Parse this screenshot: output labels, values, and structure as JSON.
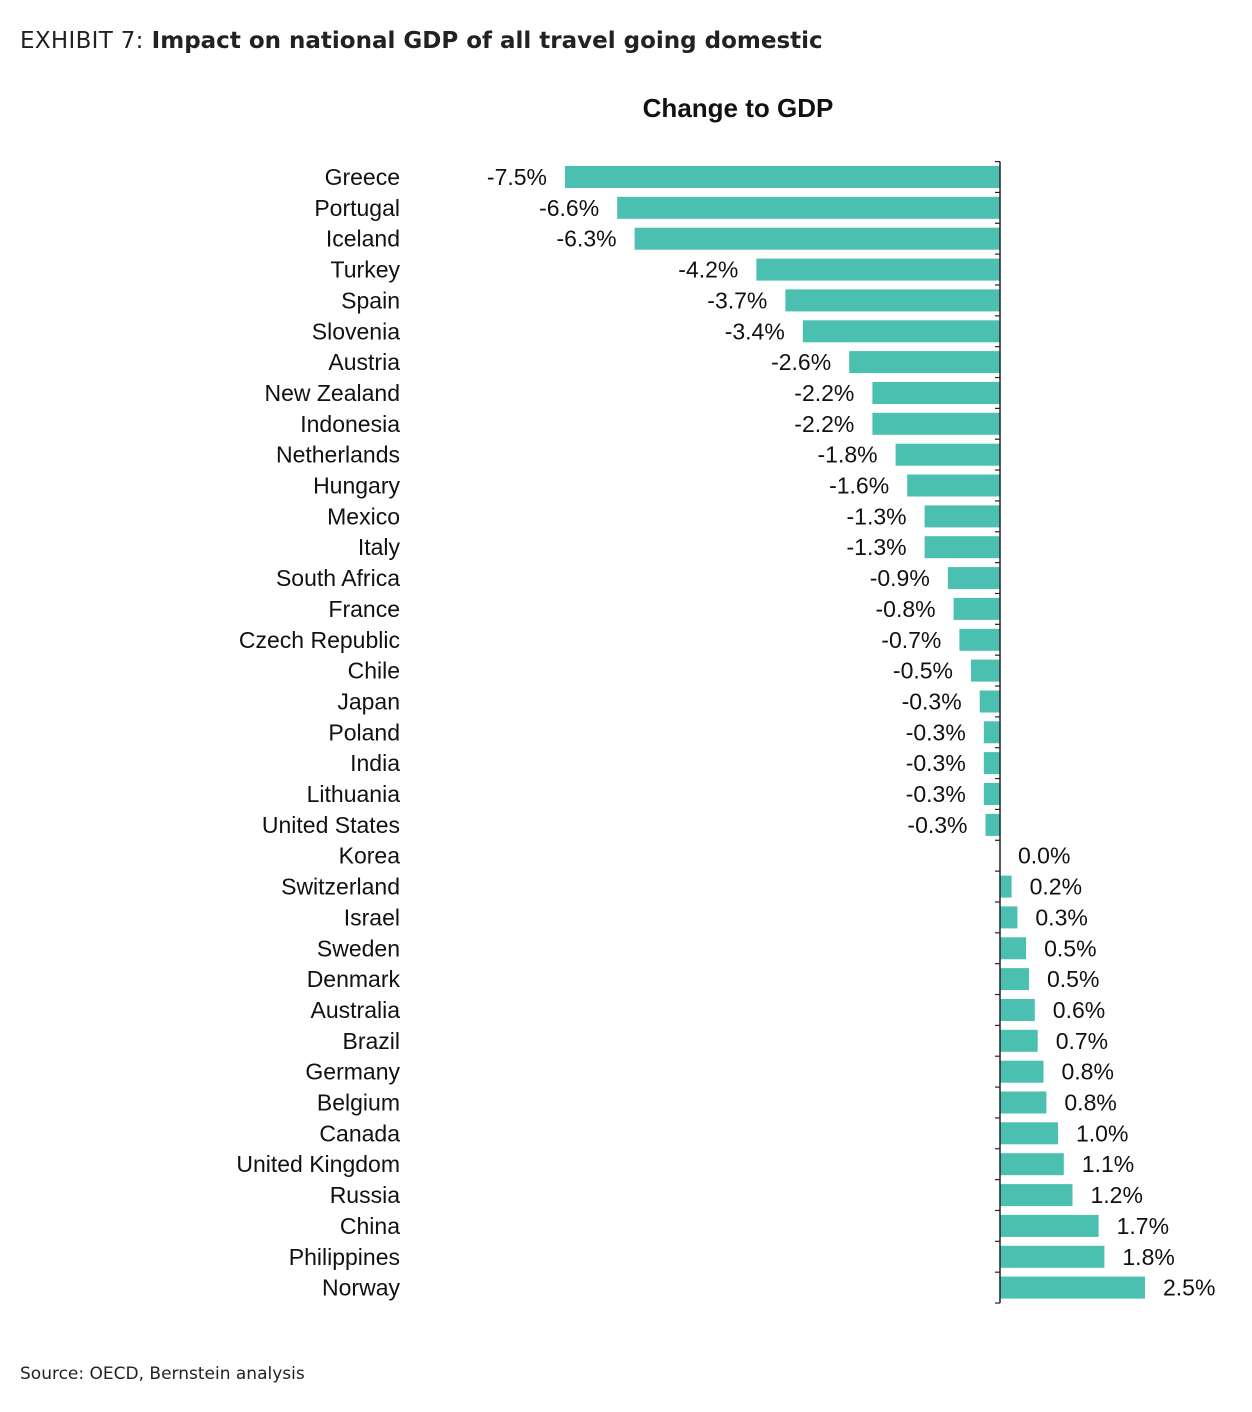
{
  "header": {
    "exhibit_label": "EXHIBIT 7:",
    "title": "Impact on national GDP of all travel going domestic"
  },
  "footer": {
    "source": "Source: OECD, Bernstein analysis"
  },
  "colors": {
    "bar": "#4bbfb0",
    "axis": "#222222",
    "text": "#111111"
  },
  "chart_data": {
    "type": "bar",
    "orientation": "horizontal",
    "title": "Change to GDP",
    "xlabel": "",
    "ylabel": "",
    "xlim": [
      -7.5,
      2.5
    ],
    "grid": false,
    "legend": "none",
    "categories": [
      "Greece",
      "Portugal",
      "Iceland",
      "Turkey",
      "Spain",
      "Slovenia",
      "Austria",
      "New Zealand",
      "Indonesia",
      "Netherlands",
      "Hungary",
      "Mexico",
      "Italy",
      "South Africa",
      "France",
      "Czech Republic",
      "Chile",
      "Japan",
      "Poland",
      "India",
      "Lithuania",
      "United States",
      "Korea",
      "Switzerland",
      "Israel",
      "Sweden",
      "Denmark",
      "Australia",
      "Brazil",
      "Germany",
      "Belgium",
      "Canada",
      "United Kingdom",
      "Russia",
      "China",
      "Philippines",
      "Norway"
    ],
    "values": [
      -7.5,
      -6.6,
      -6.3,
      -4.2,
      -3.7,
      -3.4,
      -2.6,
      -2.2,
      -2.2,
      -1.8,
      -1.6,
      -1.3,
      -1.3,
      -0.9,
      -0.8,
      -0.7,
      -0.5,
      -0.35,
      -0.28,
      -0.28,
      -0.28,
      -0.25,
      0.0,
      0.2,
      0.3,
      0.45,
      0.5,
      0.6,
      0.65,
      0.75,
      0.8,
      1.0,
      1.1,
      1.25,
      1.7,
      1.8,
      2.5
    ],
    "data_labels": [
      "-7.5%",
      "-6.6%",
      "-6.3%",
      "-4.2%",
      "-3.7%",
      "-3.4%",
      "-2.6%",
      "-2.2%",
      "-2.2%",
      "-1.8%",
      "-1.6%",
      "-1.3%",
      "-1.3%",
      "-0.9%",
      "-0.8%",
      "-0.7%",
      "-0.5%",
      "-0.3%",
      "-0.3%",
      "-0.3%",
      "-0.3%",
      "-0.3%",
      "0.0%",
      "0.2%",
      "0.3%",
      "0.5%",
      "0.5%",
      "0.6%",
      "0.7%",
      "0.8%",
      "0.8%",
      "1.0%",
      "1.1%",
      "1.2%",
      "1.7%",
      "1.8%",
      "2.5%"
    ]
  }
}
